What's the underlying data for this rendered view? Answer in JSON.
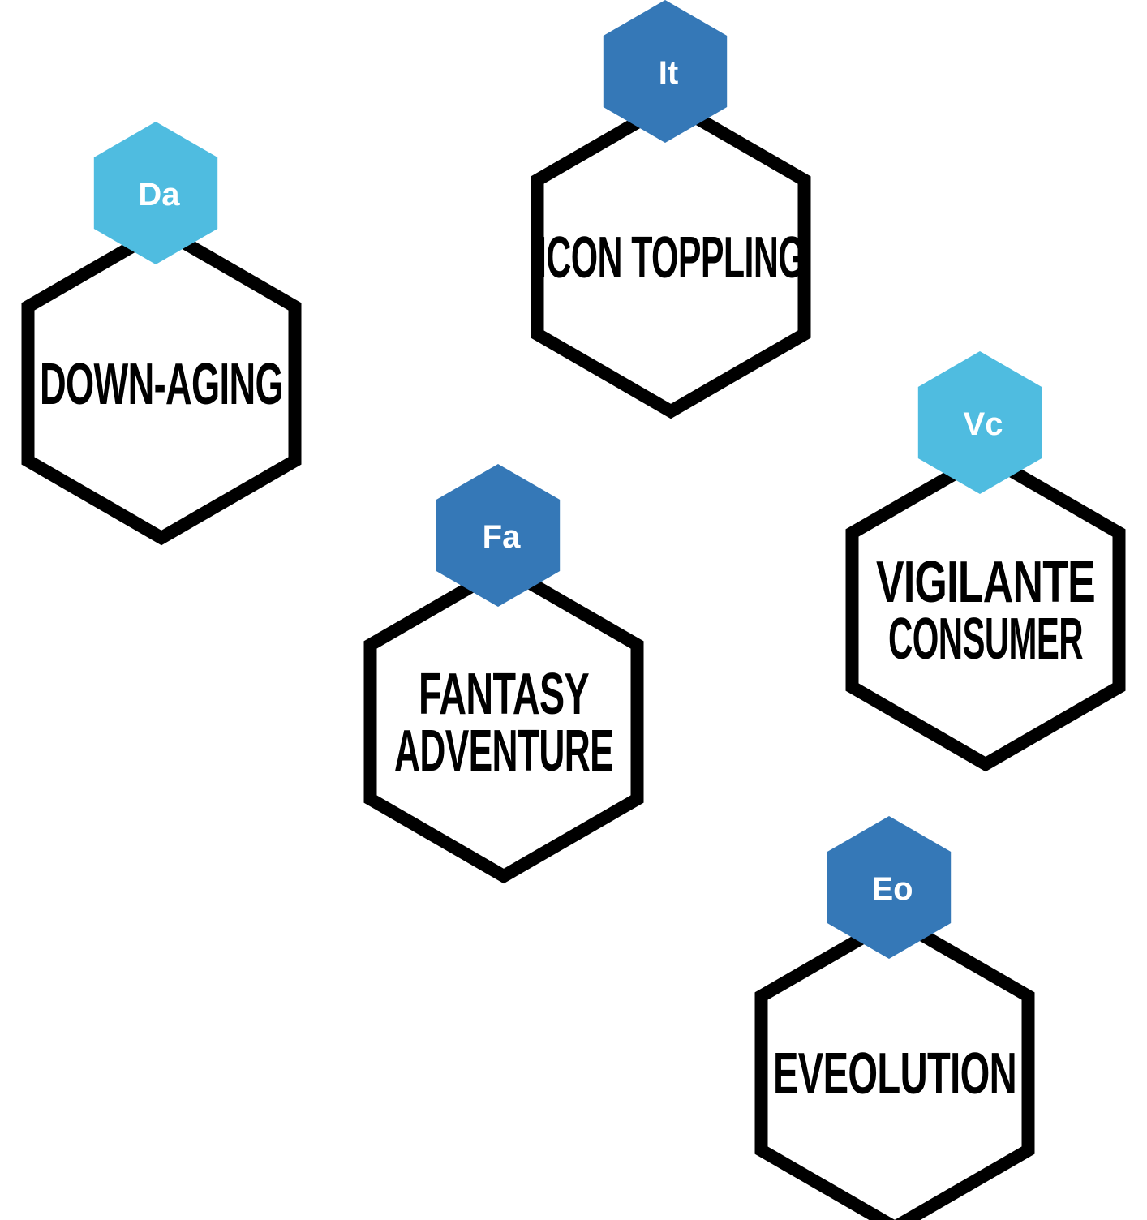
{
  "colors": {
    "outline": "#000000",
    "light_blue": "#4FBCE0",
    "dark_blue": "#3578B7"
  },
  "nodes": [
    {
      "id": "down-aging",
      "badge": "Da",
      "label_lines": [
        "DOWN-AGING"
      ],
      "badge_color": "#4FBCE0"
    },
    {
      "id": "icon-toppling",
      "badge": "It",
      "label_lines": [
        "ICON TOPPLING"
      ],
      "badge_color": "#3578B7"
    },
    {
      "id": "vigilante-consumer",
      "badge": "Vc",
      "label_lines": [
        "VIGILANTE",
        "CONSUMER"
      ],
      "badge_color": "#4FBCE0"
    },
    {
      "id": "fantasy-adventure",
      "badge": "Fa",
      "label_lines": [
        "FANTASY",
        "ADVENTURE"
      ],
      "badge_color": "#3578B7"
    },
    {
      "id": "eveolution",
      "badge": "Eo",
      "label_lines": [
        "EVEOLUTION"
      ],
      "badge_color": "#3578B7"
    }
  ]
}
